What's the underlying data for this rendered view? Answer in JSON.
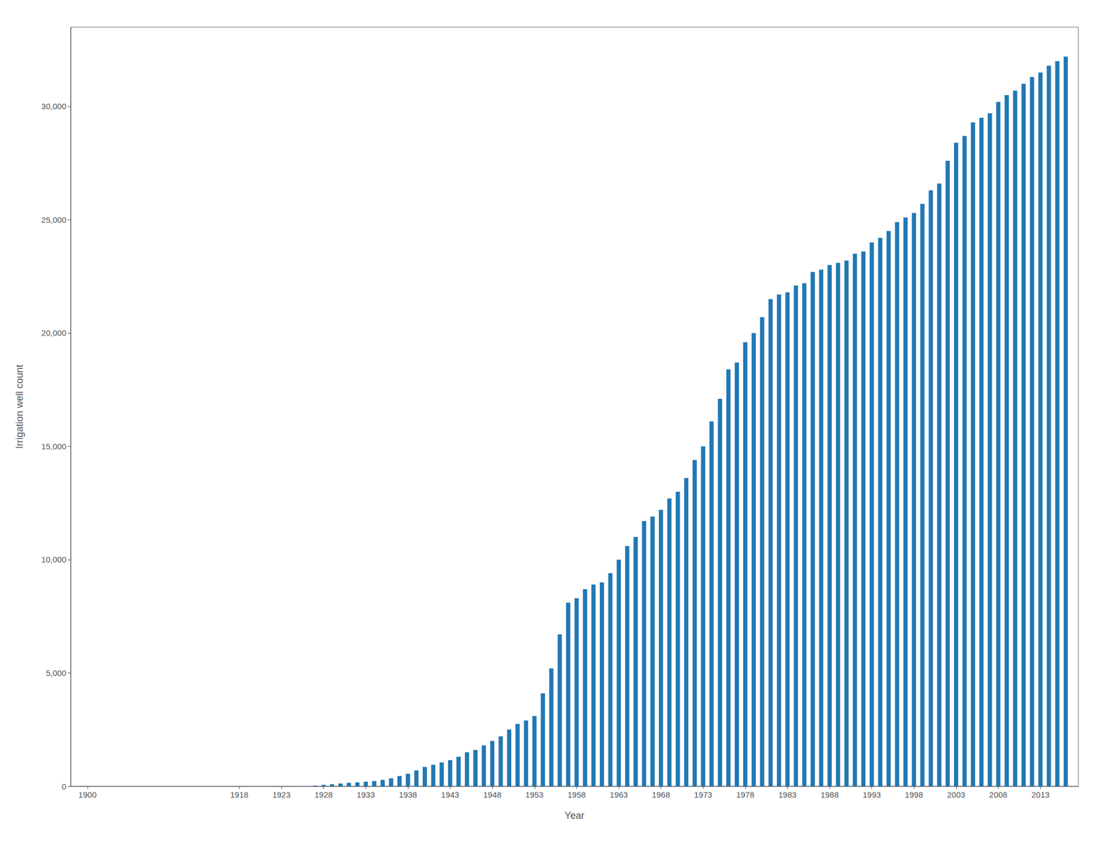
{
  "chart_data": {
    "type": "bar",
    "x": [
      1900,
      1901,
      1902,
      1903,
      1904,
      1905,
      1906,
      1907,
      1908,
      1909,
      1910,
      1911,
      1912,
      1913,
      1914,
      1915,
      1916,
      1917,
      1918,
      1919,
      1920,
      1921,
      1922,
      1923,
      1924,
      1925,
      1926,
      1927,
      1928,
      1929,
      1930,
      1931,
      1932,
      1933,
      1934,
      1935,
      1936,
      1937,
      1938,
      1939,
      1940,
      1941,
      1942,
      1943,
      1944,
      1945,
      1946,
      1947,
      1948,
      1949,
      1950,
      1951,
      1952,
      1953,
      1954,
      1955,
      1956,
      1957,
      1958,
      1959,
      1960,
      1961,
      1962,
      1963,
      1964,
      1965,
      1966,
      1967,
      1968,
      1969,
      1970,
      1971,
      1972,
      1973,
      1974,
      1975,
      1976,
      1977,
      1978,
      1979,
      1980,
      1981,
      1982,
      1983,
      1984,
      1985,
      1986,
      1987,
      1988,
      1989,
      1990,
      1991,
      1992,
      1993,
      1994,
      1995,
      1996,
      1997,
      1998,
      1999,
      2000,
      2001,
      2002,
      2003,
      2004,
      2005,
      2006,
      2007,
      2008,
      2009,
      2010,
      2011,
      2012,
      2013,
      2014,
      2015,
      2016
    ],
    "values": [
      0,
      0,
      0,
      0,
      0,
      0,
      0,
      0,
      0,
      0,
      0,
      0,
      0,
      0,
      0,
      0,
      0,
      0,
      0,
      0,
      0,
      0,
      0,
      0,
      0,
      0,
      0,
      30,
      60,
      90,
      120,
      150,
      170,
      200,
      230,
      280,
      350,
      450,
      550,
      700,
      850,
      950,
      1050,
      1150,
      1300,
      1500,
      1600,
      1800,
      2000,
      2200,
      2500,
      2750,
      2900,
      3100,
      4100,
      5200,
      6700,
      8100,
      8300,
      8700,
      8900,
      9000,
      9400,
      10000,
      10600,
      11000,
      11700,
      11900,
      12200,
      12700,
      13000,
      13600,
      14400,
      15000,
      16100,
      17100,
      18400,
      18700,
      19600,
      20000,
      20700,
      21500,
      21700,
      21800,
      22100,
      22200,
      22700,
      22800,
      23000,
      23100,
      23200,
      23500,
      23600,
      24000,
      24200,
      24500,
      24900,
      25100,
      25300,
      25700,
      26300,
      26600,
      27600,
      28400,
      28700,
      29300,
      29500,
      29700,
      30200,
      30500,
      30700,
      31000,
      31300,
      31500,
      31800,
      32000,
      32200
    ],
    "color": "#2178b4",
    "xlabel": "Year",
    "ylabel": "Irrigation well count",
    "xlim": [
      1898.0,
      2017.5
    ],
    "xticks": [
      1900,
      1918,
      1923,
      1928,
      1933,
      1938,
      1943,
      1948,
      1953,
      1958,
      1963,
      1968,
      1973,
      1978,
      1983,
      1988,
      1993,
      1998,
      2003,
      2008,
      2013
    ],
    "ylim": [
      0,
      33500
    ],
    "yticks": [
      0,
      {
        "value": 5000,
        "label": "5,000"
      },
      {
        "value": 10000,
        "label": "10,000"
      },
      {
        "value": 15000,
        "label": "15,000"
      },
      {
        "value": 20000,
        "label": "20,000"
      },
      {
        "value": 25000,
        "label": "25,000"
      },
      {
        "value": 30000,
        "label": "30,000"
      }
    ],
    "grid": false
  }
}
